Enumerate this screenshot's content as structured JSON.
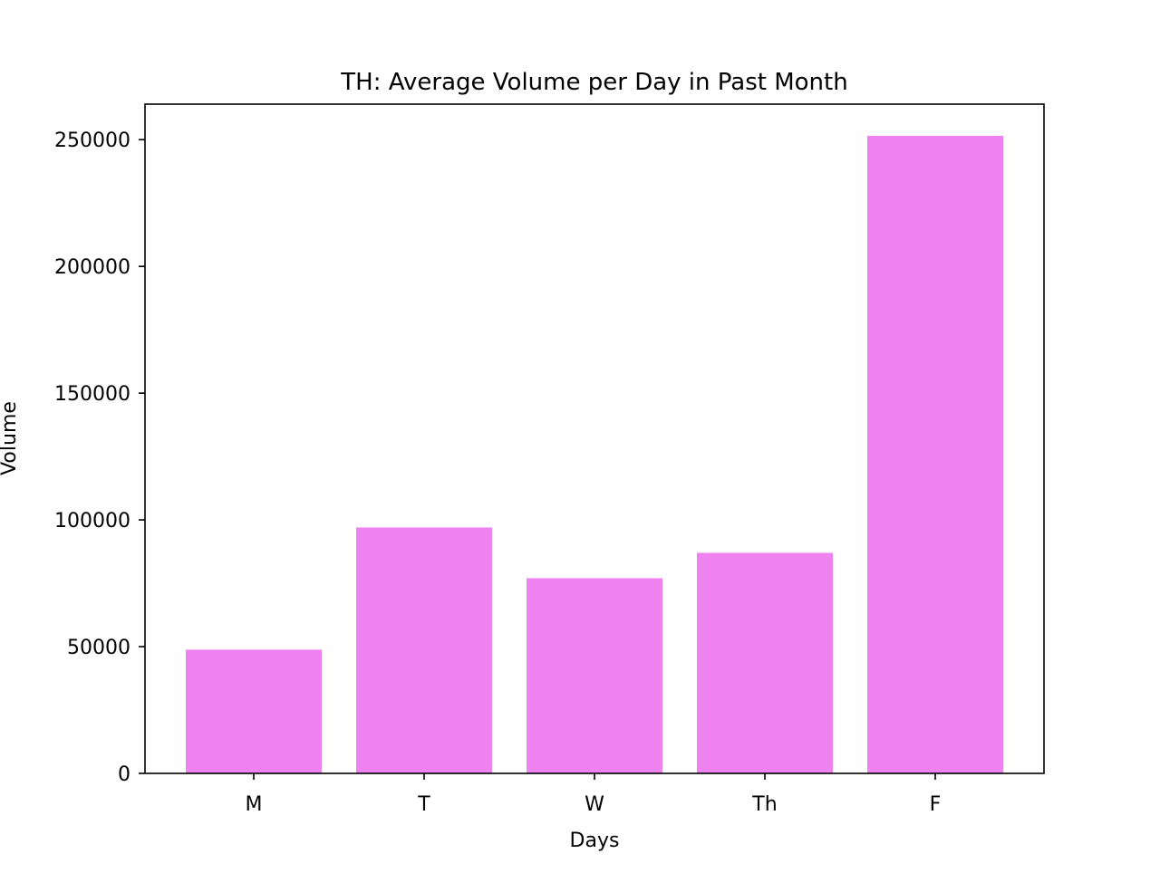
{
  "chart_data": {
    "type": "bar",
    "title": "TH: Average Volume per Day in Past Month",
    "xlabel": "Days",
    "ylabel": "Volume",
    "categories": [
      "M",
      "T",
      "W",
      "Th",
      "F"
    ],
    "values": [
      48800,
      97000,
      77000,
      87000,
      251500
    ],
    "ylim": [
      0,
      264000
    ],
    "yticks": [
      0,
      50000,
      100000,
      150000,
      200000,
      250000
    ],
    "ytick_labels": [
      "0",
      "50000",
      "100000",
      "150000",
      "200000",
      "250000"
    ],
    "grid": false,
    "legend": "none",
    "bar_color": "#EE82EE"
  }
}
